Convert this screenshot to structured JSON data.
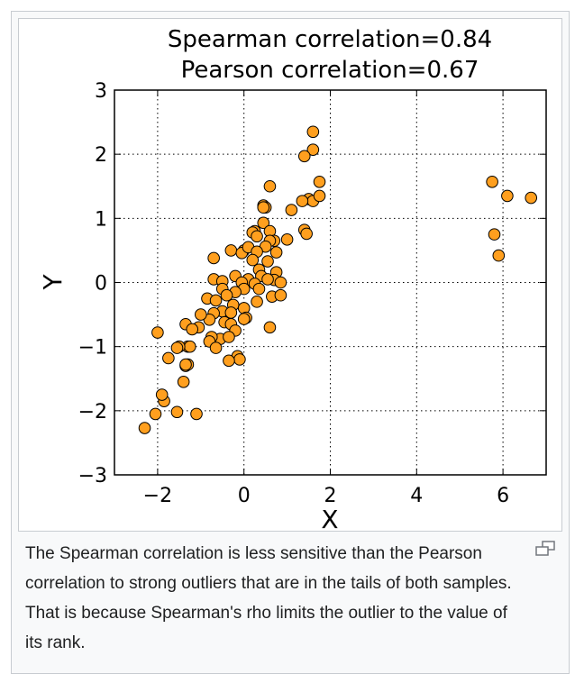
{
  "chart_data": {
    "type": "scatter",
    "title_lines": [
      "Spearman correlation=0.84",
      "Pearson correlation=0.67"
    ],
    "xlabel": "X",
    "ylabel": "Y",
    "xlim": [
      -3,
      7
    ],
    "ylim": [
      -3,
      3
    ],
    "xticks": [
      -2,
      0,
      2,
      4,
      6
    ],
    "xtick_labels": [
      "−2",
      "0",
      "2",
      "4",
      "6"
    ],
    "yticks": [
      -3,
      -2,
      -1,
      0,
      1,
      2,
      3
    ],
    "ytick_labels": [
      "−3",
      "−2",
      "−1",
      "0",
      "1",
      "2",
      "3"
    ],
    "grid": true,
    "marker_color": "#ff9f1e",
    "marker_edge": "#000000",
    "x": [
      1.6,
      1.6,
      1.4,
      1.75,
      0.6,
      1.5,
      1.6,
      1.35,
      1.75,
      1.1,
      0.45,
      0.5,
      0.45,
      0.45,
      1.4,
      0.6,
      1.45,
      0.25,
      0.2,
      0.0,
      0.3,
      0.7,
      0.6,
      0.5,
      1.0,
      0.75,
      -0.3,
      -0.05,
      0.1,
      0.3,
      0.55,
      0.2,
      0.35,
      0.75,
      -0.7,
      0.4,
      -0.2,
      0.7,
      0.55,
      0.1,
      0.85,
      -0.7,
      -0.5,
      -0.05,
      0.25,
      0.0,
      -0.5,
      -0.85,
      -0.2,
      -0.4,
      -0.65,
      0.3,
      0.65,
      0.85,
      0.35,
      -0.25,
      0.0,
      -0.5,
      -0.7,
      -0.3,
      0.05,
      0.0,
      -0.8,
      -0.45,
      -1.0,
      -0.3,
      -0.2,
      -0.55,
      -1.05,
      -0.35,
      -1.35,
      -0.75,
      -1.2,
      -1.3,
      -2.0,
      0.6,
      -0.8,
      -0.65,
      -0.15,
      -1.25,
      -1.5,
      -1.55,
      -1.75,
      -1.35,
      -0.1,
      -0.35,
      -1.3,
      -1.4,
      -1.85,
      -1.55,
      -1.9,
      -2.05,
      -1.35,
      -1.1,
      -2.3,
      5.75,
      6.1,
      6.65,
      5.8,
      5.9
    ],
    "y": [
      2.35,
      2.07,
      1.97,
      1.57,
      1.5,
      1.3,
      1.27,
      1.27,
      1.35,
      1.13,
      1.2,
      1.17,
      1.17,
      0.93,
      0.82,
      0.8,
      0.76,
      0.8,
      0.78,
      0.5,
      0.72,
      0.65,
      0.65,
      0.56,
      0.67,
      0.47,
      0.5,
      0.46,
      0.55,
      0.48,
      0.33,
      0.35,
      0.2,
      0.16,
      0.38,
      0.1,
      0.1,
      0.04,
      0.05,
      0.05,
      0.0,
      0.05,
      0.02,
      0.0,
      -0.02,
      -0.1,
      -0.1,
      -0.25,
      -0.15,
      -0.2,
      -0.28,
      -0.3,
      -0.22,
      -0.2,
      -0.1,
      -0.35,
      -0.4,
      -0.45,
      -0.48,
      -0.47,
      -0.55,
      -0.57,
      -0.58,
      -0.62,
      -0.5,
      -0.65,
      -0.75,
      -0.88,
      -0.7,
      -0.85,
      -0.65,
      -0.85,
      -0.73,
      -1.0,
      -0.78,
      -0.7,
      -0.92,
      -1.02,
      -1.15,
      -1.0,
      -1.0,
      -1.02,
      -1.18,
      -1.3,
      -1.2,
      -1.22,
      -1.28,
      -1.55,
      -1.85,
      -2.02,
      -1.75,
      -2.05,
      -1.28,
      -2.05,
      -2.27,
      1.57,
      1.35,
      1.32,
      0.75,
      0.42
    ]
  },
  "caption": "The Spearman correlation is less sensitive than the Pearson correlation to strong outliers that are in the tails of both samples. That is because Spearman's rho limits the outlier to the value of its rank.",
  "enlarge_icon": "magnify-icon"
}
